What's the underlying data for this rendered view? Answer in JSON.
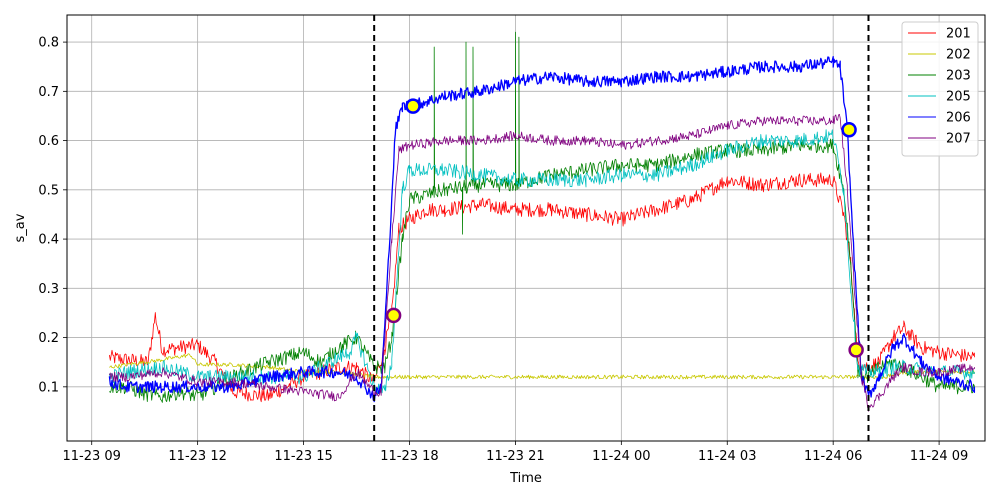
{
  "chart_data": {
    "type": "line",
    "title": "",
    "xlabel": "Time",
    "ylabel": "s_av",
    "x_unit": "hours",
    "xlim": [
      8.3,
      34.3
    ],
    "ylim": [
      -0.01,
      0.855
    ],
    "grid": true,
    "legend_position": "top-right",
    "x_ticks": [
      {
        "value": 9,
        "label": "11-23 09"
      },
      {
        "value": 12,
        "label": "11-23 12"
      },
      {
        "value": 15,
        "label": "11-23 15"
      },
      {
        "value": 18,
        "label": "11-23 18"
      },
      {
        "value": 21,
        "label": "11-23 21"
      },
      {
        "value": 24,
        "label": "11-24 00"
      },
      {
        "value": 27,
        "label": "11-24 03"
      },
      {
        "value": 30,
        "label": "11-24 06"
      },
      {
        "value": 33,
        "label": "11-24 09"
      }
    ],
    "y_ticks": [
      {
        "value": 0.1,
        "label": "0.1"
      },
      {
        "value": 0.2,
        "label": "0.2"
      },
      {
        "value": 0.3,
        "label": "0.3"
      },
      {
        "value": 0.4,
        "label": "0.4"
      },
      {
        "value": 0.5,
        "label": "0.5"
      },
      {
        "value": 0.6,
        "label": "0.6"
      },
      {
        "value": 0.7,
        "label": "0.7"
      },
      {
        "value": 0.8,
        "label": "0.8"
      }
    ],
    "vlines": [
      {
        "x": 17.0
      },
      {
        "x": 31.0
      }
    ],
    "series": [
      {
        "name": "201",
        "color": "#ff0000",
        "width": 0.8,
        "x": [
          9.5,
          10,
          10.6,
          10.8,
          11,
          11.5,
          12,
          12.5,
          13,
          14,
          15,
          16,
          16.5,
          17,
          17.3,
          17.5,
          17.7,
          18,
          18.5,
          19,
          20,
          21,
          22,
          23,
          24,
          25,
          26,
          27,
          28,
          29,
          30,
          30.3,
          30.5,
          30.7,
          31,
          31.3,
          31.7,
          32,
          32.5,
          33,
          34
        ],
        "y": [
          0.16,
          0.155,
          0.15,
          0.245,
          0.175,
          0.18,
          0.185,
          0.15,
          0.09,
          0.08,
          0.12,
          0.14,
          0.14,
          0.11,
          0.18,
          0.25,
          0.42,
          0.44,
          0.46,
          0.46,
          0.47,
          0.46,
          0.46,
          0.45,
          0.44,
          0.46,
          0.48,
          0.52,
          0.51,
          0.52,
          0.52,
          0.45,
          0.35,
          0.15,
          0.14,
          0.15,
          0.2,
          0.22,
          0.18,
          0.17,
          0.16
        ],
        "noise": 0.015
      },
      {
        "name": "202",
        "color": "#c8c800",
        "width": 0.8,
        "x": [
          9.5,
          10,
          11,
          11.8,
          12,
          13,
          14,
          15,
          16,
          16.5,
          17,
          17.2,
          17.5,
          18,
          20,
          22,
          24,
          26,
          28,
          30,
          30.5,
          31,
          31.5,
          32,
          33,
          34
        ],
        "y": [
          0.14,
          0.145,
          0.155,
          0.165,
          0.145,
          0.145,
          0.14,
          0.13,
          0.13,
          0.125,
          0.12,
          0.12,
          0.12,
          0.12,
          0.12,
          0.12,
          0.12,
          0.12,
          0.12,
          0.12,
          0.12,
          0.12,
          0.12,
          0.13,
          0.13,
          0.13
        ],
        "noise": 0.004
      },
      {
        "name": "203",
        "color": "#008000",
        "width": 0.8,
        "x": [
          9.5,
          10,
          10.5,
          11,
          11.5,
          12,
          13,
          14,
          15,
          15.5,
          16,
          16.5,
          17,
          17.3,
          17.5,
          17.8,
          18,
          19,
          20,
          21,
          22,
          23,
          24,
          25,
          26,
          27,
          28,
          29,
          30,
          30.3,
          30.5,
          30.7,
          31,
          31.3,
          31.7,
          32,
          33,
          34
        ],
        "y": [
          0.1,
          0.1,
          0.085,
          0.08,
          0.09,
          0.08,
          0.12,
          0.15,
          0.17,
          0.15,
          0.18,
          0.2,
          0.14,
          0.14,
          0.2,
          0.4,
          0.48,
          0.5,
          0.51,
          0.51,
          0.53,
          0.54,
          0.55,
          0.55,
          0.57,
          0.58,
          0.58,
          0.59,
          0.59,
          0.5,
          0.35,
          0.13,
          0.12,
          0.14,
          0.15,
          0.14,
          0.1,
          0.1
        ],
        "noise": 0.015,
        "spikes": [
          [
            18.7,
            0.79
          ],
          [
            19.6,
            0.8
          ],
          [
            19.8,
            0.79
          ],
          [
            21.0,
            0.82
          ],
          [
            21.1,
            0.81
          ],
          [
            19.5,
            0.41
          ]
        ]
      },
      {
        "name": "205",
        "color": "#00c0c0",
        "width": 0.8,
        "x": [
          9.5,
          10,
          11,
          12,
          13,
          14,
          15,
          15.5,
          16,
          16.3,
          16.5,
          16.8,
          17,
          17.3,
          17.5,
          17.8,
          18,
          19,
          20,
          21,
          22,
          23,
          24,
          25,
          26,
          27,
          28,
          29,
          30,
          30.3,
          30.5,
          30.7,
          31,
          31.3,
          31.7,
          32,
          33,
          34
        ],
        "y": [
          0.12,
          0.13,
          0.14,
          0.12,
          0.12,
          0.12,
          0.12,
          0.14,
          0.16,
          0.17,
          0.2,
          0.14,
          0.1,
          0.09,
          0.15,
          0.5,
          0.54,
          0.54,
          0.53,
          0.52,
          0.52,
          0.52,
          0.53,
          0.53,
          0.55,
          0.58,
          0.6,
          0.6,
          0.61,
          0.5,
          0.3,
          0.14,
          0.13,
          0.13,
          0.14,
          0.14,
          0.13,
          0.13
        ],
        "noise": 0.015
      },
      {
        "name": "206",
        "color": "#0000ff",
        "width": 0.8,
        "x": [
          9.5,
          10,
          11,
          12,
          13,
          14,
          15,
          16,
          16.5,
          17,
          17.2,
          17.4,
          17.6,
          17.8,
          18,
          18.5,
          19,
          20,
          21,
          22,
          23,
          24,
          25,
          26,
          27,
          28,
          29,
          30,
          30.2,
          30.4,
          30.6,
          30.8,
          31,
          31.3,
          31.7,
          32,
          32.5,
          33,
          34
        ],
        "y": [
          0.11,
          0.1,
          0.1,
          0.1,
          0.1,
          0.12,
          0.13,
          0.13,
          0.12,
          0.08,
          0.1,
          0.35,
          0.62,
          0.67,
          0.67,
          0.68,
          0.69,
          0.7,
          0.72,
          0.73,
          0.72,
          0.72,
          0.73,
          0.73,
          0.74,
          0.75,
          0.75,
          0.76,
          0.75,
          0.62,
          0.35,
          0.12,
          0.08,
          0.12,
          0.18,
          0.2,
          0.15,
          0.12,
          0.1
        ],
        "noise": 0.012,
        "line_width": 1.3
      },
      {
        "name": "207",
        "color": "#800080",
        "width": 0.8,
        "x": [
          9.5,
          10,
          11,
          12,
          13,
          14,
          15,
          16,
          16.5,
          17,
          17.2,
          17.5,
          17.7,
          18,
          19,
          20,
          21,
          22,
          23,
          24,
          25,
          26,
          27,
          28,
          29,
          30,
          30.2,
          30.4,
          30.6,
          30.8,
          31,
          31.3,
          31.7,
          32,
          32.5,
          33,
          34
        ],
        "y": [
          0.12,
          0.12,
          0.13,
          0.11,
          0.11,
          0.1,
          0.09,
          0.08,
          0.13,
          0.09,
          0.09,
          0.4,
          0.58,
          0.59,
          0.6,
          0.6,
          0.61,
          0.6,
          0.6,
          0.59,
          0.6,
          0.61,
          0.63,
          0.64,
          0.64,
          0.64,
          0.65,
          0.5,
          0.3,
          0.12,
          0.06,
          0.08,
          0.12,
          0.14,
          0.13,
          0.13,
          0.14
        ],
        "noise": 0.01
      }
    ],
    "markers": [
      {
        "x": 17.55,
        "y": 0.245,
        "fill": "#ffff00",
        "edge": "#800080"
      },
      {
        "x": 18.1,
        "y": 0.67,
        "fill": "#ffff00",
        "edge": "#0000ff"
      },
      {
        "x": 30.45,
        "y": 0.622,
        "fill": "#ffff00",
        "edge": "#0000ff"
      },
      {
        "x": 30.65,
        "y": 0.175,
        "fill": "#ffff00",
        "edge": "#800080"
      }
    ]
  }
}
